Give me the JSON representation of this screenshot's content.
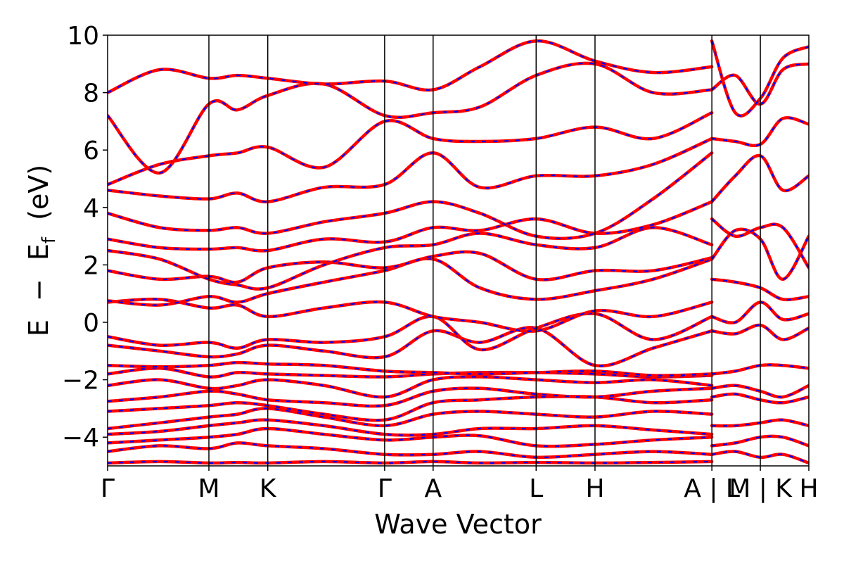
{
  "chart_data": {
    "type": "line",
    "xlabel": "Wave Vector",
    "ylabel_parts": {
      "e": "E",
      "minus": "−",
      "ef": "E",
      "ef_sub": "f",
      "unit": "(eV)"
    },
    "ylim": [
      -5,
      10
    ],
    "y_ticks": [
      -4,
      -2,
      0,
      2,
      4,
      6,
      8,
      10
    ],
    "y_tick_labels": [
      "−4",
      "−2",
      "0",
      "2",
      "4",
      "6",
      "8",
      "10"
    ],
    "xlim": [
      0,
      8.1
    ],
    "k_points": [
      {
        "label": "Γ",
        "x": 0.0
      },
      {
        "label": "M",
        "x": 1.17
      },
      {
        "label": "K",
        "x": 1.85
      },
      {
        "label": "Γ",
        "x": 3.2
      },
      {
        "label": "A",
        "x": 3.76
      },
      {
        "label": "L",
        "x": 4.95
      },
      {
        "label": "H",
        "x": 5.63
      },
      {
        "label": "A | L",
        "x": 6.98
      },
      {
        "label": "M | K",
        "x": 7.54
      },
      {
        "label": "H",
        "x": 8.1
      }
    ],
    "vlines": [
      1.17,
      1.85,
      3.2,
      3.76,
      4.95,
      5.63,
      6.98,
      7.54
    ],
    "series": [
      {
        "color": "#ff0000",
        "style": "solid"
      },
      {
        "color": "#0000ff",
        "style": "dashed"
      }
    ],
    "bands": [
      {
        "x": [
          0,
          0.6,
          1.17,
          1.5,
          1.85,
          2.5,
          3.2,
          3.76,
          4.3,
          4.95,
          5.63,
          6.3,
          6.98
        ],
        "y": [
          -4.9,
          -4.85,
          -4.9,
          -4.88,
          -4.9,
          -4.85,
          -4.9,
          -4.85,
          -4.9,
          -4.88,
          -4.9,
          -4.88,
          -4.85
        ]
      },
      {
        "x": [
          0,
          0.6,
          1.17,
          1.5,
          1.85,
          2.5,
          3.2,
          3.76,
          4.3,
          4.95,
          5.63,
          6.3,
          6.98
        ],
        "y": [
          -4.5,
          -4.3,
          -4.4,
          -4.2,
          -4.3,
          -4.4,
          -4.6,
          -4.6,
          -4.5,
          -4.7,
          -4.6,
          -4.5,
          -4.6
        ]
      },
      {
        "x": [
          0,
          0.6,
          1.17,
          1.5,
          1.85,
          2.5,
          3.2,
          3.76,
          4.3,
          4.95,
          5.63,
          6.3,
          6.98
        ],
        "y": [
          -4.2,
          -4.1,
          -4.0,
          -3.9,
          -3.7,
          -3.9,
          -4.1,
          -4.0,
          -3.95,
          -4.3,
          -4.25,
          -4.1,
          -4.0
        ]
      },
      {
        "x": [
          0,
          0.6,
          1.17,
          1.5,
          1.85,
          2.5,
          3.2,
          3.76,
          4.3,
          4.95,
          5.63,
          6.3,
          6.98
        ],
        "y": [
          -3.9,
          -3.8,
          -3.6,
          -3.5,
          -3.4,
          -3.6,
          -3.9,
          -3.9,
          -3.7,
          -3.7,
          -3.6,
          -3.75,
          -3.9
        ]
      },
      {
        "x": [
          0,
          0.6,
          1.17,
          1.5,
          1.85,
          2.5,
          3.2,
          3.76,
          4.3,
          4.95,
          5.63,
          6.3,
          6.98
        ],
        "y": [
          -3.7,
          -3.5,
          -3.3,
          -3.2,
          -3.0,
          -3.3,
          -3.6,
          -3.2,
          -3.1,
          -3.2,
          -3.3,
          -3.1,
          -3.2
        ]
      },
      {
        "x": [
          0,
          0.6,
          1.17,
          1.5,
          1.85,
          2.5,
          3.2,
          3.76,
          4.3,
          4.95,
          5.63,
          6.3,
          6.98
        ],
        "y": [
          -3.1,
          -3.0,
          -2.9,
          -2.8,
          -2.9,
          -3.2,
          -3.4,
          -2.8,
          -2.7,
          -2.6,
          -2.6,
          -2.8,
          -2.7
        ]
      },
      {
        "x": [
          0,
          0.6,
          1.17,
          1.5,
          1.85,
          2.5,
          3.2,
          3.76,
          4.3,
          4.95,
          5.63,
          6.3,
          6.98
        ],
        "y": [
          -2.75,
          -2.6,
          -2.4,
          -2.5,
          -2.7,
          -2.8,
          -2.9,
          -2.4,
          -2.3,
          -2.5,
          -2.6,
          -2.4,
          -2.3
        ]
      },
      {
        "x": [
          0,
          0.6,
          1.17,
          1.5,
          1.85,
          2.5,
          3.2,
          3.76,
          4.3,
          4.95,
          5.63,
          6.3,
          6.98
        ],
        "y": [
          -2.2,
          -2.0,
          -2.3,
          -2.2,
          -2.0,
          -2.2,
          -2.6,
          -2.0,
          -1.9,
          -2.0,
          -2.1,
          -2.0,
          -2.2
        ]
      },
      {
        "x": [
          0,
          0.6,
          1.17,
          1.5,
          1.85,
          2.5,
          3.2,
          3.76,
          4.3,
          4.95,
          5.63,
          6.3,
          6.98
        ],
        "y": [
          -1.8,
          -1.6,
          -1.9,
          -1.75,
          -1.8,
          -1.85,
          -1.9,
          -1.8,
          -1.75,
          -1.75,
          -1.8,
          -1.9,
          -1.85
        ]
      },
      {
        "x": [
          0,
          0.6,
          1.17,
          1.5,
          1.85,
          2.5,
          3.2,
          3.76,
          4.3,
          4.95,
          5.63,
          6.3,
          6.98
        ],
        "y": [
          -1.5,
          -1.55,
          -1.5,
          -1.4,
          -1.45,
          -1.5,
          -1.7,
          -1.75,
          -1.8,
          -1.75,
          -1.7,
          -1.85,
          -1.8
        ]
      },
      {
        "x": [
          0,
          0.6,
          1.17,
          1.5,
          1.85,
          2.5,
          3.2,
          3.76,
          4.3,
          4.95,
          5.63,
          6.3,
          6.98
        ],
        "y": [
          -0.8,
          -1.0,
          -1.2,
          -1.1,
          -0.8,
          -1.0,
          -1.2,
          -0.3,
          -0.7,
          -0.2,
          -1.5,
          -0.9,
          -0.3
        ]
      },
      {
        "x": [
          0,
          0.6,
          1.17,
          1.5,
          1.85,
          2.5,
          3.2,
          3.76,
          4.3,
          4.95,
          5.63,
          6.3,
          6.98
        ],
        "y": [
          -0.5,
          -0.8,
          -0.7,
          -0.9,
          -0.6,
          -0.7,
          -0.5,
          0.2,
          -0.95,
          -0.2,
          0.3,
          -0.6,
          0.2
        ]
      },
      {
        "x": [
          0,
          0.6,
          1.17,
          1.5,
          1.85,
          2.5,
          3.2,
          3.76,
          4.3,
          4.95,
          5.63,
          6.3,
          6.98
        ],
        "y": [
          0.7,
          0.8,
          0.5,
          0.6,
          0.2,
          0.5,
          0.7,
          0.2,
          0.0,
          -0.3,
          0.4,
          0.2,
          0.7
        ]
      },
      {
        "x": [
          0,
          0.6,
          1.17,
          1.5,
          1.85,
          2.5,
          3.2,
          3.76,
          4.3,
          4.95,
          5.63,
          6.3,
          6.98
        ],
        "y": [
          0.75,
          0.6,
          0.9,
          0.7,
          1.0,
          1.4,
          1.8,
          2.2,
          1.2,
          0.8,
          1.1,
          1.5,
          2.2
        ]
      },
      {
        "x": [
          0,
          0.6,
          1.17,
          1.5,
          1.85,
          2.5,
          3.2,
          3.76,
          4.3,
          4.95,
          5.63,
          6.3,
          6.98
        ],
        "y": [
          1.8,
          1.5,
          1.6,
          1.4,
          1.9,
          2.1,
          1.9,
          2.3,
          2.4,
          1.5,
          1.8,
          1.8,
          2.25
        ]
      },
      {
        "x": [
          0,
          0.6,
          1.17,
          1.5,
          1.85,
          2.5,
          3.2,
          3.76,
          4.3,
          4.95,
          5.63,
          6.3,
          6.98
        ],
        "y": [
          2.5,
          2.2,
          1.5,
          1.3,
          1.2,
          2.0,
          2.6,
          2.7,
          3.1,
          2.7,
          2.6,
          3.3,
          2.7
        ]
      },
      {
        "x": [
          0,
          0.6,
          1.17,
          1.5,
          1.85,
          2.5,
          3.2,
          3.76,
          4.3,
          4.95,
          5.63,
          6.3,
          6.98
        ],
        "y": [
          2.9,
          2.6,
          2.55,
          2.6,
          2.5,
          2.9,
          2.8,
          3.3,
          3.2,
          3.6,
          3.1,
          3.4,
          4.2
        ]
      },
      {
        "x": [
          0,
          0.6,
          1.17,
          1.5,
          1.85,
          2.5,
          3.2,
          3.76,
          4.3,
          4.95,
          5.63,
          6.3,
          6.98
        ],
        "y": [
          3.8,
          3.3,
          3.2,
          3.3,
          3.1,
          3.5,
          3.8,
          4.2,
          3.8,
          3.0,
          3.1,
          4.3,
          5.9
        ]
      },
      {
        "x": [
          0,
          0.6,
          1.17,
          1.5,
          1.85,
          2.5,
          3.2,
          3.76,
          4.3,
          4.95,
          5.63,
          6.3,
          6.98
        ],
        "y": [
          4.6,
          4.4,
          4.3,
          4.5,
          4.2,
          4.7,
          4.8,
          5.9,
          4.7,
          5.1,
          5.1,
          5.5,
          6.4
        ]
      },
      {
        "x": [
          0,
          0.6,
          1.17,
          1.5,
          1.85,
          2.5,
          3.2,
          3.76,
          4.3,
          4.95,
          5.63,
          6.3,
          6.98
        ],
        "y": [
          4.8,
          5.5,
          5.8,
          5.9,
          6.1,
          5.4,
          7.0,
          6.4,
          6.3,
          6.4,
          6.8,
          6.4,
          7.3
        ]
      },
      {
        "x": [
          0,
          0.6,
          1.17,
          1.5,
          1.85,
          2.5,
          3.2,
          3.76,
          4.3,
          4.95,
          5.63,
          6.3,
          6.98
        ],
        "y": [
          7.2,
          5.2,
          7.6,
          7.4,
          7.9,
          8.3,
          7.2,
          7.3,
          7.5,
          8.6,
          9.0,
          8.0,
          8.1
        ]
      },
      {
        "x": [
          0,
          0.6,
          1.17,
          1.5,
          1.85,
          2.5,
          3.2,
          3.76,
          4.3,
          4.95,
          5.63,
          6.3,
          6.98
        ],
        "y": [
          8.0,
          8.8,
          8.5,
          8.6,
          8.5,
          8.3,
          8.4,
          8.1,
          8.9,
          9.8,
          9.1,
          8.7,
          8.9
        ]
      },
      {
        "x": [
          6.98,
          7.25,
          7.54,
          7.8,
          8.1
        ],
        "y": [
          -4.6,
          -4.5,
          -4.7,
          -4.6,
          -4.9
        ]
      },
      {
        "x": [
          6.98,
          7.25,
          7.54,
          7.8,
          8.1
        ],
        "y": [
          -4.3,
          -4.2,
          -4.0,
          -4.0,
          -4.3
        ]
      },
      {
        "x": [
          6.98,
          7.25,
          7.54,
          7.8,
          8.1
        ],
        "y": [
          -3.6,
          -3.6,
          -3.5,
          -3.4,
          -3.6
        ]
      },
      {
        "x": [
          6.98,
          7.25,
          7.54,
          7.8,
          8.1
        ],
        "y": [
          -2.6,
          -2.5,
          -2.7,
          -2.8,
          -2.6
        ]
      },
      {
        "x": [
          6.98,
          7.25,
          7.54,
          7.8,
          8.1
        ],
        "y": [
          -2.3,
          -2.2,
          -2.4,
          -2.6,
          -2.2
        ]
      },
      {
        "x": [
          6.98,
          7.25,
          7.54,
          7.8,
          8.1
        ],
        "y": [
          -1.8,
          -1.7,
          -1.5,
          -1.5,
          -1.6
        ]
      },
      {
        "x": [
          6.98,
          7.25,
          7.54,
          7.8,
          8.1
        ],
        "y": [
          -0.3,
          -0.4,
          -0.1,
          -0.6,
          -0.2
        ]
      },
      {
        "x": [
          6.98,
          7.25,
          7.54,
          7.8,
          8.1
        ],
        "y": [
          0.2,
          0.0,
          0.7,
          0.1,
          0.3
        ]
      },
      {
        "x": [
          6.98,
          7.25,
          7.54,
          7.8,
          8.1
        ],
        "y": [
          1.5,
          1.4,
          1.2,
          0.8,
          0.9
        ]
      },
      {
        "x": [
          6.98,
          7.25,
          7.54,
          7.8,
          8.1
        ],
        "y": [
          2.2,
          3.2,
          2.9,
          1.5,
          3.0
        ]
      },
      {
        "x": [
          6.98,
          7.25,
          7.54,
          7.8,
          8.1
        ],
        "y": [
          3.6,
          3.0,
          3.3,
          3.3,
          1.9
        ]
      },
      {
        "x": [
          6.98,
          7.25,
          7.54,
          7.8,
          8.1
        ],
        "y": [
          4.2,
          5.1,
          5.8,
          4.6,
          5.1
        ]
      },
      {
        "x": [
          6.98,
          7.25,
          7.54,
          7.8,
          8.1
        ],
        "y": [
          6.4,
          6.3,
          6.2,
          7.1,
          6.9
        ]
      },
      {
        "x": [
          6.98,
          7.25,
          7.54,
          7.8,
          8.1
        ],
        "y": [
          8.1,
          8.6,
          7.6,
          8.8,
          9.0
        ]
      },
      {
        "x": [
          6.98,
          7.25,
          7.54,
          7.8,
          8.1
        ],
        "y": [
          9.8,
          7.3,
          7.8,
          9.2,
          9.6
        ]
      }
    ]
  }
}
